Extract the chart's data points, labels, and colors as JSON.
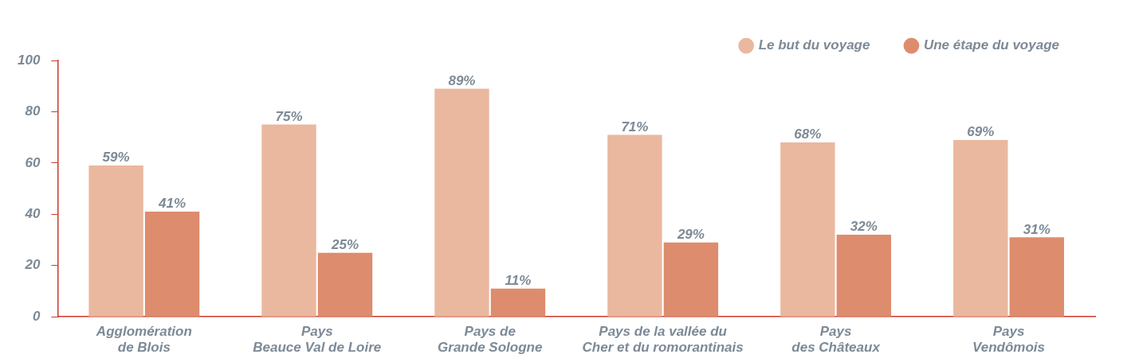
{
  "chart_data": {
    "type": "bar",
    "categories": [
      "Agglomération\nde Blois",
      "Pays\nBeauce Val de Loire",
      "Pays de\nGrande Sologne",
      "Pays de la vallée du\nCher et du romorantinais",
      "Pays\ndes Châteaux",
      "Pays\nVendômois"
    ],
    "series": [
      {
        "name": "Le but du voyage",
        "color": "#eab89f",
        "values": [
          59,
          75,
          89,
          71,
          68,
          69
        ],
        "value_labels": [
          "59%",
          "75%",
          "89%",
          "71%",
          "68%",
          "69%"
        ]
      },
      {
        "name": "Une étape du voyage",
        "color": "#de8c6e",
        "values": [
          41,
          25,
          11,
          29,
          32,
          31
        ],
        "value_labels": [
          "41%",
          "25%",
          "11%",
          "29%",
          "32%",
          "31%"
        ]
      }
    ],
    "ylim": [
      0,
      100
    ],
    "yticks": [
      0,
      20,
      40,
      60,
      80,
      100
    ],
    "grid": false,
    "legend": "top right"
  }
}
